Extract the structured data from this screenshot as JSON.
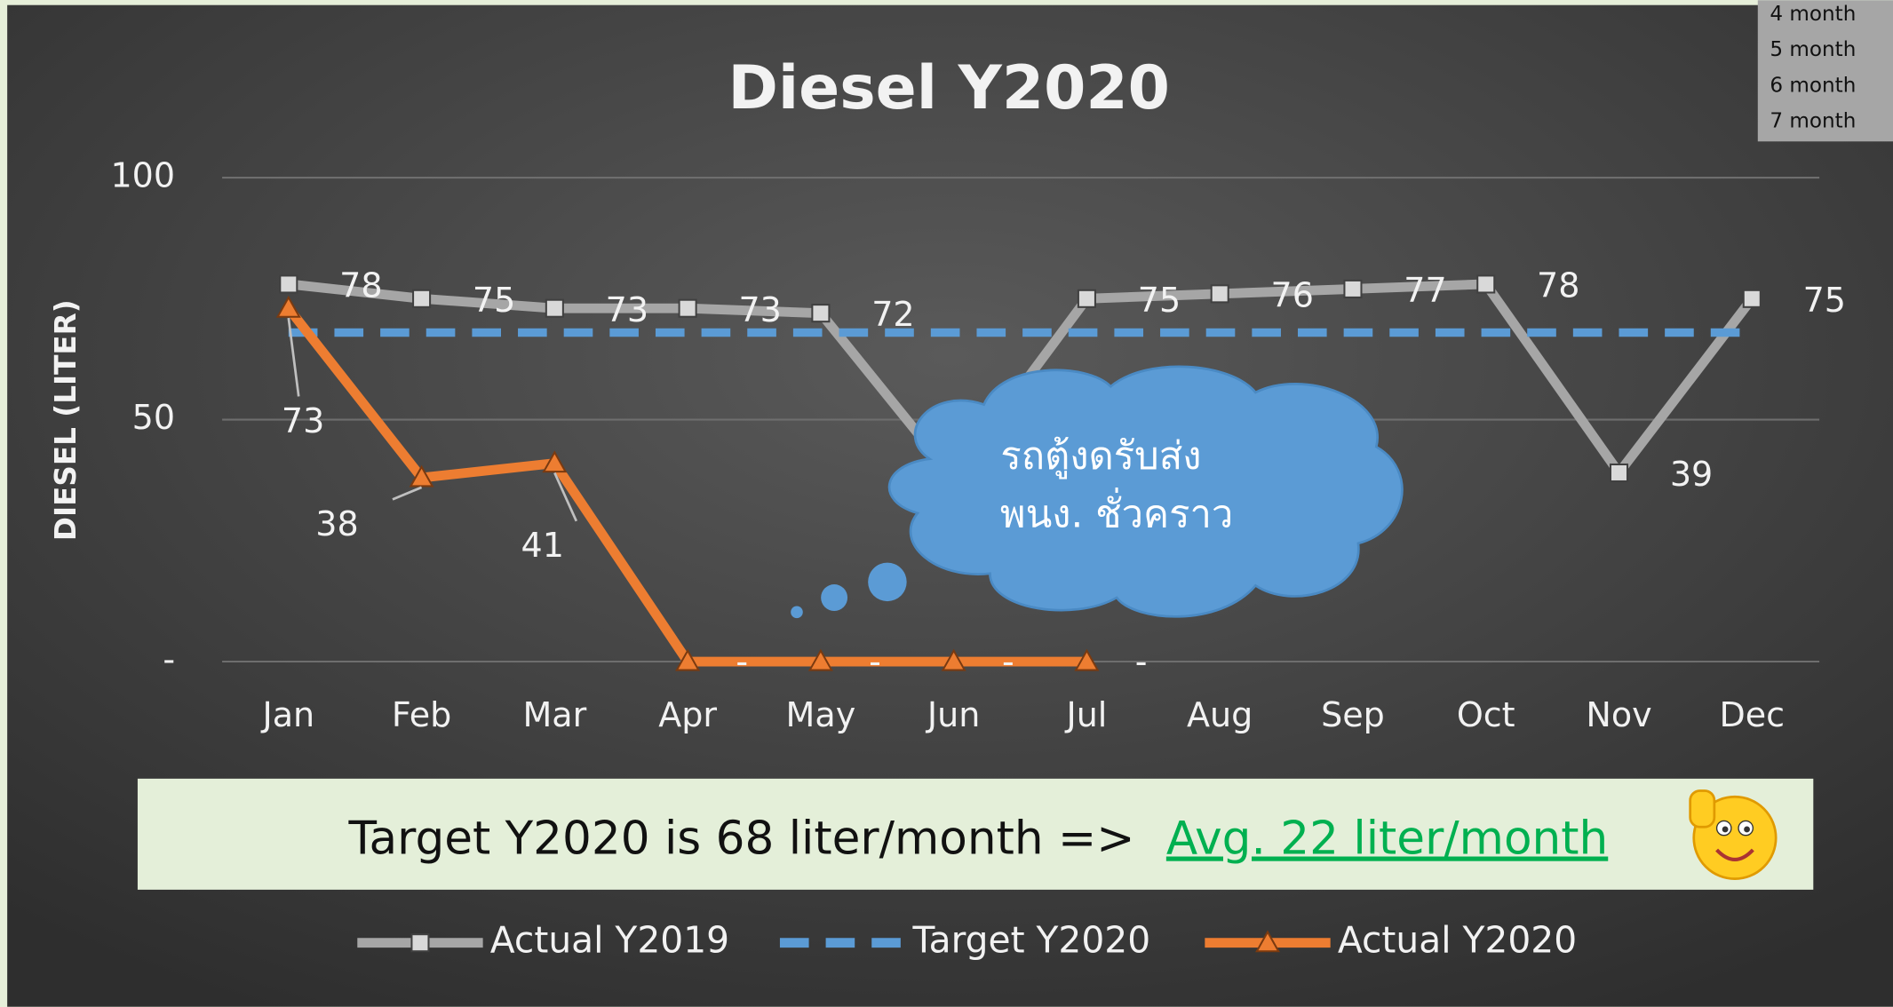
{
  "chart_data": {
    "type": "line",
    "title": "Diesel Y2020",
    "y_label": "DIESEL (LITER)",
    "categories": [
      "Jan",
      "Feb",
      "Mar",
      "Apr",
      "May",
      "Jun",
      "Jul",
      "Aug",
      "Sep",
      "Oct",
      "Nov",
      "Dec"
    ],
    "series": [
      {
        "name": "Actual Y2019",
        "color": "#a6a6a6",
        "marker": "square",
        "values": [
          78,
          75,
          73,
          73,
          72,
          38,
          75,
          76,
          77,
          78,
          39,
          75
        ]
      },
      {
        "name": "Target Y2020",
        "color": "#5b9bd5",
        "dashed": true,
        "values": [
          68,
          68,
          68,
          68,
          68,
          68,
          68,
          68,
          68,
          68,
          68,
          68
        ]
      },
      {
        "name": "Actual Y2020",
        "color": "#ed7d31",
        "marker": "triangle",
        "values": [
          73,
          38,
          41,
          0,
          0,
          0,
          0,
          null,
          null,
          null,
          null,
          null
        ],
        "value_labels": [
          "73",
          "38",
          "41",
          "-",
          "-",
          "-",
          "-",
          null,
          null,
          null,
          null,
          null
        ]
      }
    ],
    "ylim": [
      0,
      100
    ],
    "yticks": [
      {
        "value": 0,
        "label": "-"
      },
      50,
      100
    ],
    "grid": true,
    "legend": "bottom",
    "annotation": [
      "รถตู้งดรับส่ง",
      "พนง. ชั่วคราว"
    ],
    "banner": {
      "text": "Target Y2020 is 68 liter/month =>",
      "highlight": "Avg. 22 liter/month"
    },
    "corner_list": [
      "4 month",
      "5 month",
      "6 month",
      "7 month"
    ]
  }
}
